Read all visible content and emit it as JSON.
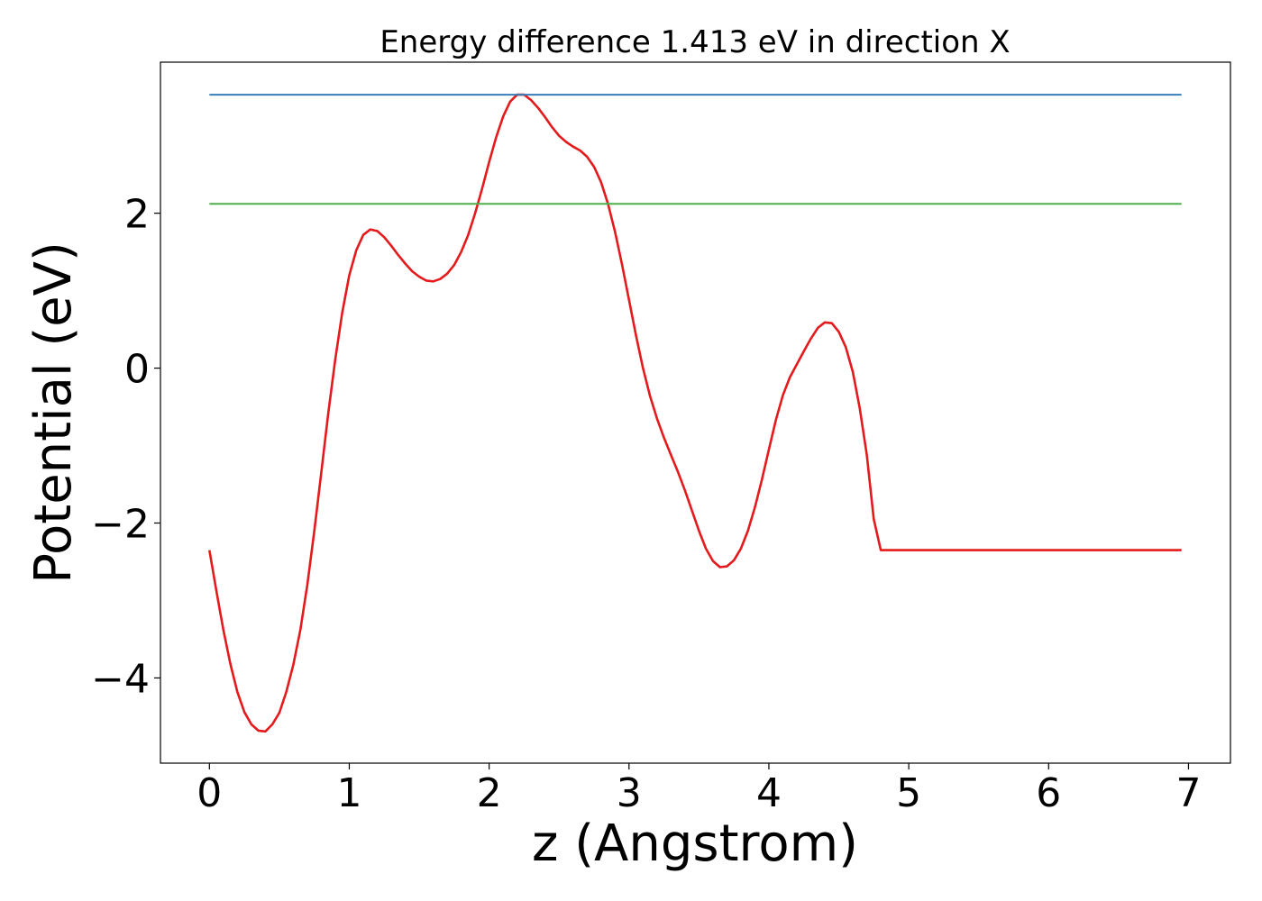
{
  "chart_data": {
    "type": "line",
    "title": "Energy difference 1.413 eV in direction X",
    "xlabel": "z (Angstrom)",
    "ylabel": "Potential (eV)",
    "xlim": [
      -0.35,
      7.3
    ],
    "ylim": [
      -5.1,
      3.95
    ],
    "xticks": [
      0,
      1,
      2,
      3,
      4,
      5,
      6,
      7
    ],
    "xtick_labels": [
      "0",
      "1",
      "2",
      "3",
      "4",
      "5",
      "6",
      "7"
    ],
    "yticks": [
      -4,
      -2,
      0,
      2
    ],
    "ytick_labels": [
      "−4",
      "−2",
      "0",
      "2"
    ],
    "grid": false,
    "series": [
      {
        "color": "#e41a1c",
        "x": [
          0.0,
          0.05,
          0.1,
          0.15,
          0.2,
          0.25,
          0.3,
          0.35,
          0.4,
          0.45,
          0.5,
          0.55,
          0.6,
          0.65,
          0.7,
          0.75,
          0.8,
          0.85,
          0.9,
          0.95,
          1.0,
          1.05,
          1.1,
          1.15,
          1.2,
          1.25,
          1.3,
          1.35,
          1.4,
          1.45,
          1.5,
          1.55,
          1.6,
          1.65,
          1.7,
          1.75,
          1.8,
          1.85,
          1.9,
          1.95,
          2.0,
          2.05,
          2.1,
          2.15,
          2.2,
          2.25,
          2.3,
          2.35,
          2.4,
          2.45,
          2.5,
          2.55,
          2.6,
          2.65,
          2.7,
          2.75,
          2.8,
          2.85,
          2.9,
          2.95,
          3.0,
          3.05,
          3.1,
          3.15,
          3.2,
          3.25,
          3.3,
          3.35,
          3.4,
          3.45,
          3.5,
          3.55,
          3.6,
          3.65,
          3.7,
          3.75,
          3.8,
          3.85,
          3.9,
          3.95,
          4.0,
          4.05,
          4.1,
          4.15,
          4.2,
          4.25,
          4.3,
          4.35,
          4.4,
          4.45,
          4.5,
          4.55,
          4.6,
          4.65,
          4.7,
          4.75,
          4.8,
          4.85,
          4.9,
          4.95,
          5.0,
          5.05,
          5.1,
          5.15,
          5.2,
          5.25,
          5.3,
          5.35,
          5.4,
          5.45,
          5.5,
          5.55,
          5.6,
          5.65,
          5.7,
          5.75,
          5.8,
          5.85,
          5.9,
          5.95,
          6.0,
          6.05,
          6.1,
          6.15,
          6.2,
          6.25,
          6.3,
          6.35,
          6.4,
          6.45,
          6.5,
          6.55,
          6.6,
          6.65,
          6.7,
          6.75,
          6.8,
          6.85,
          6.9,
          6.95
        ],
        "y": [
          -2.35,
          -2.88,
          -3.38,
          -3.82,
          -4.18,
          -4.44,
          -4.6,
          -4.68,
          -4.69,
          -4.6,
          -4.45,
          -4.18,
          -3.83,
          -3.38,
          -2.8,
          -2.1,
          -1.35,
          -0.58,
          0.12,
          0.72,
          1.2,
          1.52,
          1.72,
          1.79,
          1.77,
          1.69,
          1.58,
          1.46,
          1.35,
          1.25,
          1.18,
          1.13,
          1.12,
          1.15,
          1.22,
          1.33,
          1.5,
          1.72,
          2.0,
          2.32,
          2.66,
          2.98,
          3.25,
          3.44,
          3.53,
          3.53,
          3.46,
          3.36,
          3.24,
          3.11,
          3.0,
          2.92,
          2.86,
          2.81,
          2.73,
          2.6,
          2.4,
          2.12,
          1.76,
          1.34,
          0.88,
          0.42,
          0.0,
          -0.36,
          -0.65,
          -0.9,
          -1.12,
          -1.34,
          -1.58,
          -1.84,
          -2.1,
          -2.33,
          -2.49,
          -2.57,
          -2.56,
          -2.48,
          -2.33,
          -2.1,
          -1.8,
          -1.44,
          -1.05,
          -0.67,
          -0.35,
          -0.12,
          0.05,
          0.22,
          0.38,
          0.52,
          0.59,
          0.58,
          0.47,
          0.27,
          -0.05,
          -0.52,
          -1.12,
          -1.95,
          -2.35,
          -2.35,
          -2.35,
          -2.35,
          -2.35,
          -2.35,
          -2.35,
          -2.35,
          -2.35,
          -2.35,
          -2.35,
          -2.35,
          -2.35,
          -2.35,
          -2.35,
          -2.35,
          -2.35,
          -2.35,
          -2.35,
          -2.35,
          -2.35,
          -2.35,
          -2.35,
          -2.35,
          -2.35,
          -2.35,
          -2.35,
          -2.35,
          -2.35,
          -2.35,
          -2.35,
          -2.35,
          -2.35,
          -2.35,
          -2.35,
          -2.35,
          -2.35,
          -2.35,
          -2.35,
          -2.35,
          -2.35,
          -2.35,
          -2.35,
          -2.35
        ]
      },
      {
        "color": "#377eb8",
        "x": [
          0.0,
          6.95
        ],
        "y": [
          3.53,
          3.53
        ]
      },
      {
        "color": "#4daf4a",
        "x": [
          0.0,
          6.95
        ],
        "y": [
          2.12,
          2.12
        ]
      }
    ]
  }
}
